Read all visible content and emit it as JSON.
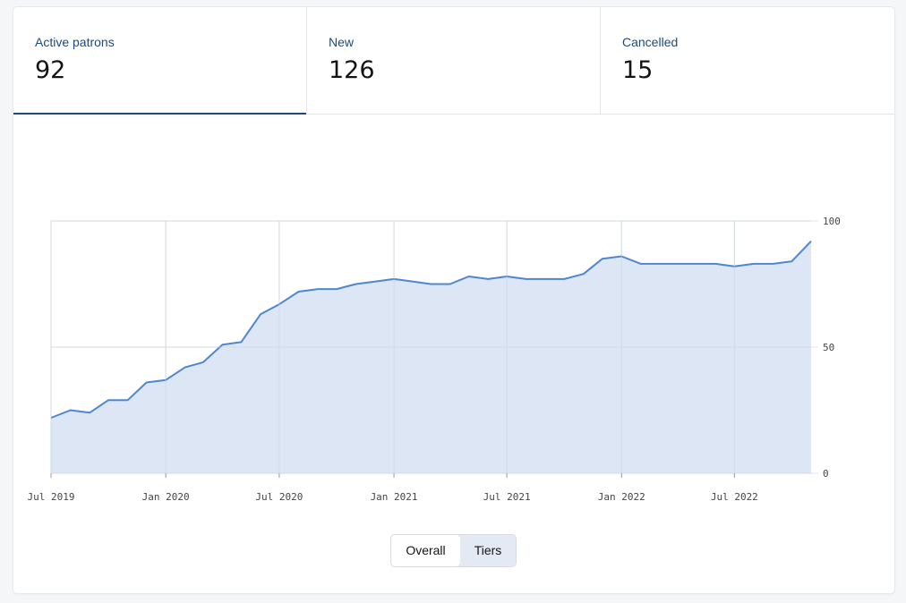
{
  "stats": [
    {
      "label": "Active patrons",
      "value": "92"
    },
    {
      "label": "New",
      "value": "126"
    },
    {
      "label": "Cancelled",
      "value": "15"
    }
  ],
  "toggle": {
    "overall": "Overall",
    "tiers": "Tiers"
  },
  "colors": {
    "accent": "#1c4b7a",
    "line": "#4f86d0",
    "fill": "#dce6f4",
    "grid": "#e2e5ea"
  },
  "chart_data": {
    "type": "area",
    "xlabel": "",
    "ylabel": "",
    "ylim": [
      0,
      100
    ],
    "y_ticks": [
      "100",
      "50",
      "0"
    ],
    "y_tick_values": [
      100,
      50,
      0
    ],
    "x_ticks": [
      "Jul 2019",
      "Jan 2020",
      "Jul 2020",
      "Jan 2021",
      "Jul 2021",
      "Jan 2022",
      "Jul 2022"
    ],
    "x_tick_dates": [
      "2019-07-01",
      "2020-01-01",
      "2020-07-01",
      "2021-01-01",
      "2021-07-01",
      "2022-01-01",
      "2022-07-01"
    ],
    "grid": true,
    "series": [
      {
        "x": [
          "2019-07-01",
          "2019-08-01",
          "2019-09-01",
          "2019-10-01",
          "2019-11-01",
          "2019-12-01",
          "2020-01-01",
          "2020-02-01",
          "2020-03-01",
          "2020-04-01",
          "2020-05-01",
          "2020-06-01",
          "2020-07-01",
          "2020-08-01",
          "2020-09-01",
          "2020-10-01",
          "2020-11-01",
          "2020-12-01",
          "2021-01-01",
          "2021-02-01",
          "2021-03-01",
          "2021-04-01",
          "2021-05-01",
          "2021-06-01",
          "2021-07-01",
          "2021-08-01",
          "2021-09-01",
          "2021-10-01",
          "2021-11-01",
          "2021-12-01",
          "2022-01-01",
          "2022-02-01",
          "2022-03-01",
          "2022-04-01",
          "2022-05-01",
          "2022-06-01",
          "2022-07-01",
          "2022-08-01",
          "2022-09-01",
          "2022-10-01",
          "2022-11-01"
        ],
        "values": [
          22,
          25,
          24,
          29,
          29,
          36,
          37,
          42,
          44,
          51,
          52,
          63,
          67,
          72,
          73,
          73,
          75,
          76,
          77,
          76,
          75,
          75,
          78,
          77,
          78,
          77,
          77,
          77,
          79,
          85,
          86,
          83,
          83,
          83,
          83,
          83,
          82,
          83,
          83,
          84,
          92
        ]
      }
    ]
  }
}
